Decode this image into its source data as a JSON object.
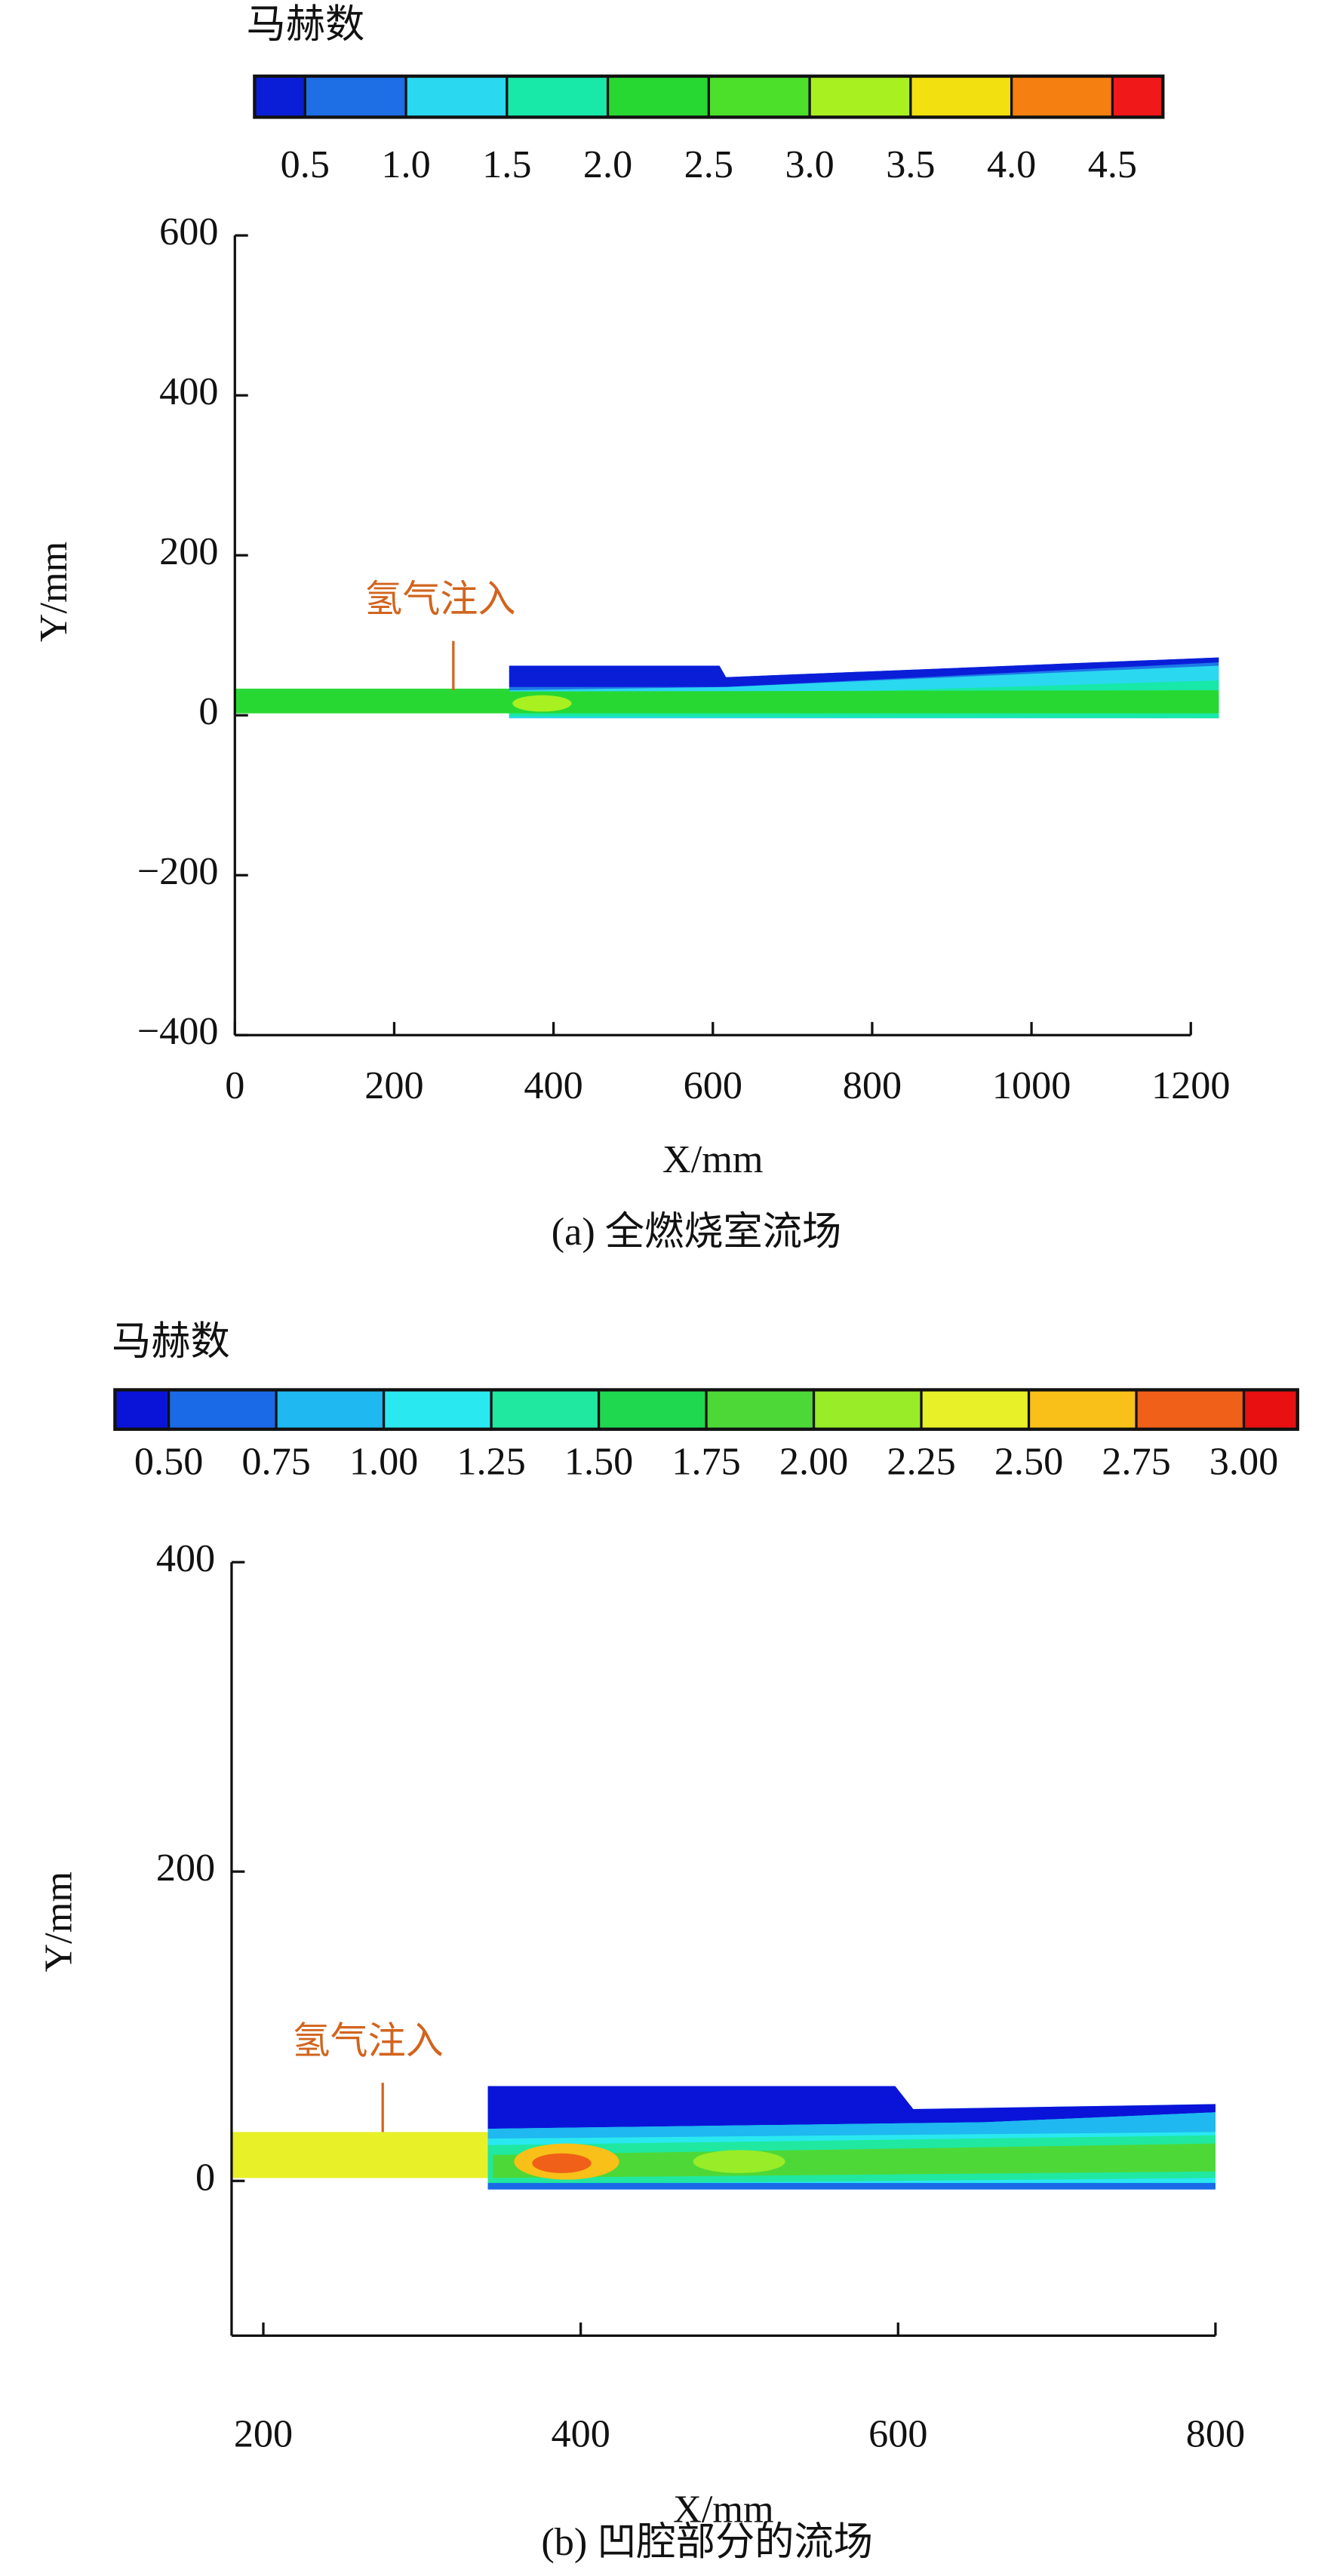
{
  "chart_data": [
    {
      "type": "contour",
      "title": "(a) 全燃烧室流场",
      "x_label": "X/mm",
      "y_label": "Y/mm",
      "annotation": "氢气注入",
      "colorbar": {
        "title": "马赫数",
        "colors": [
          "#0a1ed8",
          "#1e6ee6",
          "#2ad8f0",
          "#18e8a8",
          "#28d832",
          "#4ce02a",
          "#a8f020",
          "#f2e010",
          "#f57f10",
          "#f01818"
        ],
        "ticks": [
          0.5,
          {
            "value": 1.0,
            "label": "1.0"
          },
          1.5,
          {
            "value": 2.0,
            "label": "2.0"
          },
          2.5,
          {
            "value": 3.0,
            "label": "3.0"
          },
          3.5,
          {
            "value": 4.0,
            "label": "4.0"
          },
          4.5
        ]
      },
      "xlim": [
        0,
        1200
      ],
      "xticks": [
        0,
        200,
        400,
        600,
        800,
        1000,
        1200
      ],
      "ylim": [
        -400,
        600
      ],
      "yticks": [
        {
          "value": -400,
          "label": "−400"
        },
        {
          "value": -200,
          "label": "−200"
        },
        0,
        200,
        400,
        600
      ]
    },
    {
      "type": "contour",
      "title": "(b) 凹腔部分的流场",
      "x_label": "X/mm",
      "y_label": "Y/mm",
      "annotation": "氢气注入",
      "colorbar": {
        "title": "马赫数",
        "colors": [
          "#0a14d8",
          "#1a6ae8",
          "#1fb8f0",
          "#2ae8f0",
          "#20e8a0",
          "#20d850",
          "#4ed838",
          "#98ec28",
          "#e8f028",
          "#f8c018",
          "#f06018",
          "#e81010"
        ],
        "ticks": [
          {
            "value": 0.5,
            "label": "0.50"
          },
          0.75,
          {
            "value": 1.0,
            "label": "1.00"
          },
          1.25,
          {
            "value": 1.5,
            "label": "1.50"
          },
          1.75,
          {
            "value": 2.0,
            "label": "2.00"
          },
          2.25,
          {
            "value": 2.5,
            "label": "2.50"
          },
          2.75,
          {
            "value": 3.0,
            "label": "3.00"
          }
        ]
      },
      "xlim": [
        180,
        800
      ],
      "xticks": [
        200,
        400,
        600,
        800
      ],
      "ylim": [
        -100,
        400
      ],
      "yticks": [
        0,
        200,
        400
      ]
    }
  ]
}
